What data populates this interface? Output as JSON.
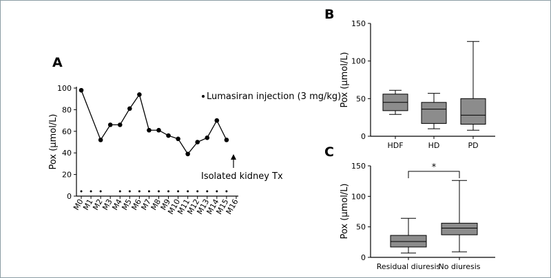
{
  "colors": {
    "line": "#000000",
    "box_fill": "#8c8c8c",
    "border": "#8a9ca3"
  },
  "chart_data": [
    {
      "panel": "A",
      "type": "line",
      "ylabel": "Pox (µmol/L)",
      "ylim": [
        0,
        100
      ],
      "yticks": [
        0,
        20,
        40,
        60,
        80,
        100
      ],
      "categories": [
        "M0",
        "M1",
        "M2",
        "M3",
        "M4",
        "M5",
        "M6",
        "M7",
        "M8",
        "M9",
        "M10",
        "M11",
        "M12",
        "M13",
        "M14",
        "M15",
        "M16"
      ],
      "points": [
        {
          "x": "M0",
          "y": 98
        },
        {
          "x": "M2",
          "y": 52
        },
        {
          "x": "M3",
          "y": 66
        },
        {
          "x": "M4",
          "y": 66
        },
        {
          "x": "M5",
          "y": 81
        },
        {
          "x": "M6",
          "y": 94
        },
        {
          "x": "M7",
          "y": 61
        },
        {
          "x": "M8",
          "y": 61
        },
        {
          "x": "M9",
          "y": 56
        },
        {
          "x": "M10",
          "y": 53
        },
        {
          "x": "M11",
          "y": 39
        },
        {
          "x": "M12",
          "y": 50
        },
        {
          "x": "M13",
          "y": 54
        },
        {
          "x": "M14",
          "y": 70
        },
        {
          "x": "M15",
          "y": 52
        }
      ],
      "injection_months": [
        "M0",
        "M1",
        "M2",
        "M4",
        "M5",
        "M6",
        "M7",
        "M8",
        "M9",
        "M10",
        "M11",
        "M12",
        "M13",
        "M14",
        "M15"
      ],
      "legend_text": "Lumasiran injection (3 mg/kg)",
      "annotation_text": "Isolated kidney Tx",
      "annotation_at": "M15"
    },
    {
      "panel": "B",
      "type": "box",
      "ylabel": "Pox (µmol/L)",
      "ylim": [
        0,
        150
      ],
      "yticks": [
        0,
        50,
        100,
        150
      ],
      "boxes": [
        {
          "label": "HDF",
          "min": 29,
          "q1": 34,
          "median": 45,
          "q3": 56,
          "max": 61
        },
        {
          "label": "HD",
          "min": 10,
          "q1": 17,
          "median": 36,
          "q3": 45,
          "max": 57
        },
        {
          "label": "PD",
          "min": 8,
          "q1": 16,
          "median": 28,
          "q3": 50,
          "max": 126
        }
      ]
    },
    {
      "panel": "C",
      "type": "box",
      "ylabel": "Pox (µmol/L)",
      "ylim": [
        0,
        150
      ],
      "yticks": [
        0,
        50,
        100,
        150
      ],
      "boxes": [
        {
          "label": "Residual diuresis",
          "min": 7,
          "q1": 17,
          "median": 26,
          "q3": 36,
          "max": 64
        },
        {
          "label": "No diuresis",
          "min": 9,
          "q1": 37,
          "median": 48,
          "q3": 56,
          "max": 126
        }
      ],
      "significance": "*"
    }
  ]
}
